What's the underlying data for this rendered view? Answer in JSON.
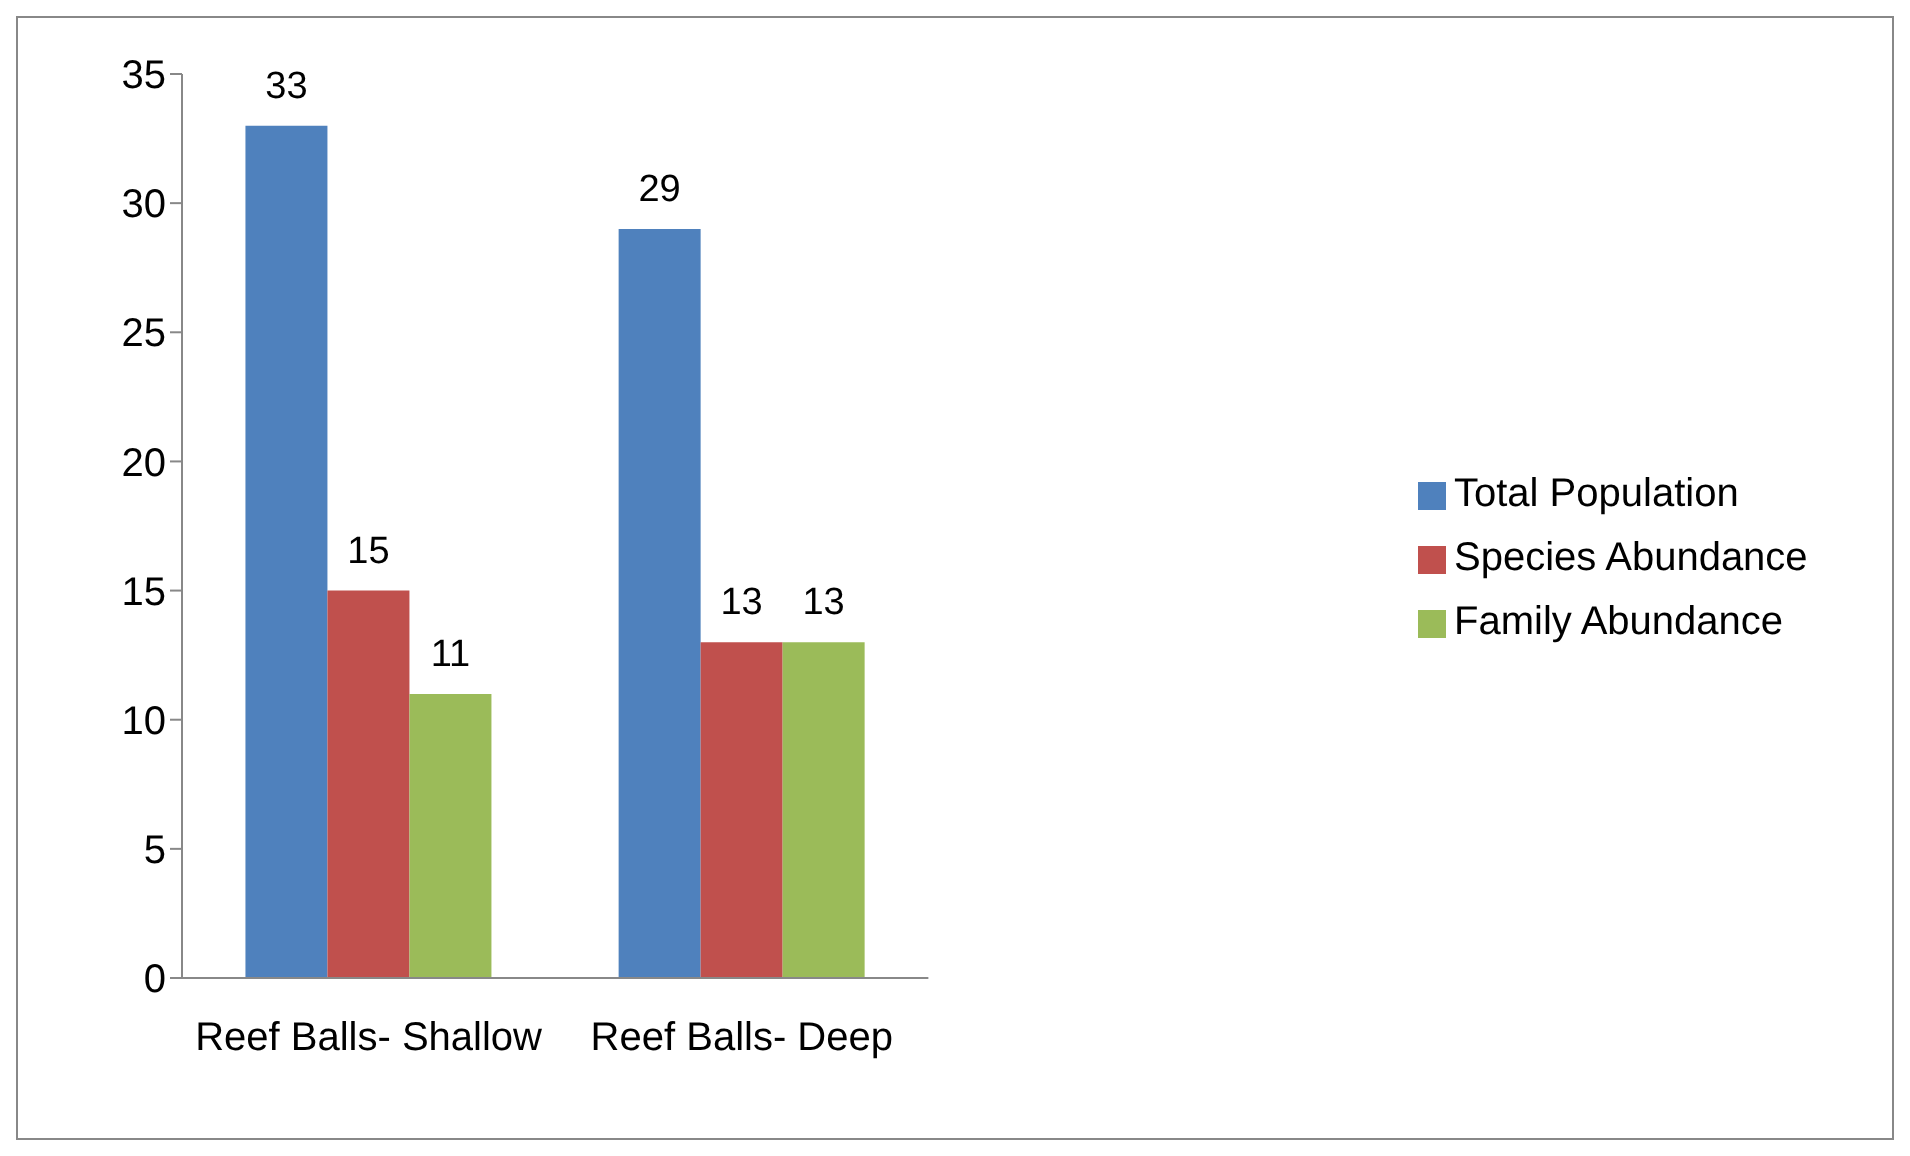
{
  "chart_data": {
    "type": "bar",
    "categories": [
      "Reef Balls- Shallow",
      "Reef Balls- Deep"
    ],
    "series": [
      {
        "name": "Total Population",
        "color": "#4f81bd",
        "values": [
          33,
          29
        ]
      },
      {
        "name": "Species Abundance",
        "color": "#c0504d",
        "values": [
          15,
          13
        ]
      },
      {
        "name": "Family Abundance",
        "color": "#9bbb59",
        "values": [
          11,
          13
        ]
      }
    ],
    "ylim": [
      0,
      35
    ],
    "yticks": [
      0,
      5,
      10,
      15,
      20,
      25,
      30,
      35
    ],
    "data_labels": true,
    "legend": "right",
    "grid": false
  }
}
